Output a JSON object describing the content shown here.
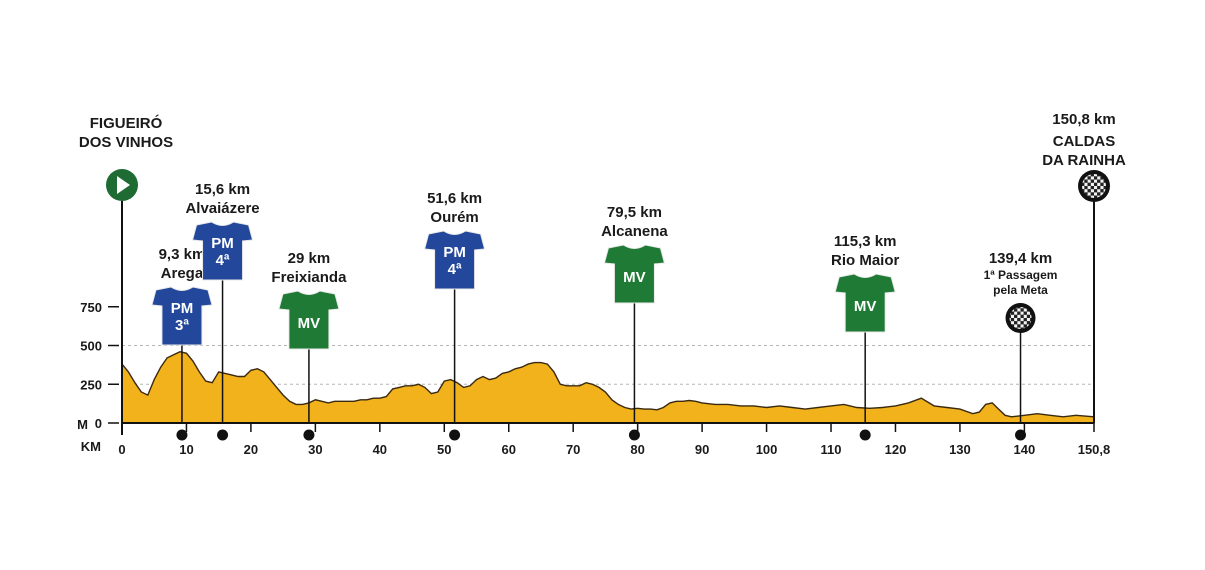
{
  "chart_data": {
    "type": "area",
    "title": "",
    "xlabel": "KM",
    "ylabel": "M",
    "xlim": [
      0,
      150.8
    ],
    "ylim": [
      0,
      1000
    ],
    "x_ticks": [
      "0",
      "10",
      "20",
      "30",
      "40",
      "50",
      "60",
      "70",
      "80",
      "90",
      "100",
      "110",
      "120",
      "130",
      "140",
      "150,8"
    ],
    "x_tick_values": [
      0,
      10,
      20,
      30,
      40,
      50,
      60,
      70,
      80,
      90,
      100,
      110,
      120,
      130,
      140,
      150.8
    ],
    "y_ticks": [
      "0",
      "250",
      "500",
      "750"
    ],
    "y_tick_values": [
      0,
      250,
      500,
      750
    ],
    "grid": {
      "horizontal_dashed": [
        250,
        500
      ]
    },
    "fill_color": "#f2b21c",
    "stroke_color": "#3a2a10",
    "elevation": {
      "x": [
        0,
        1,
        2,
        3,
        4,
        5,
        6,
        7,
        8,
        9,
        10,
        11,
        12,
        13,
        14,
        15,
        16,
        17,
        18,
        19,
        20,
        21,
        22,
        23,
        24,
        25,
        26,
        27,
        28,
        29,
        30,
        31,
        32,
        33,
        34,
        35,
        36,
        37,
        38,
        39,
        40,
        41,
        42,
        43,
        44,
        45,
        46,
        47,
        48,
        49,
        50,
        51,
        52,
        53,
        54,
        55,
        56,
        57,
        58,
        59,
        60,
        61,
        62,
        63,
        64,
        65,
        66,
        67,
        68,
        69,
        70,
        71,
        72,
        73,
        74,
        75,
        76,
        77,
        78,
        79,
        80,
        81,
        82,
        83,
        84,
        85,
        86,
        87,
        88,
        89,
        90,
        92,
        94,
        96,
        98,
        100,
        102,
        104,
        106,
        108,
        110,
        112,
        114,
        116,
        118,
        120,
        122,
        124,
        126,
        128,
        130,
        132,
        133,
        134,
        135,
        136,
        137,
        138,
        140,
        142,
        144,
        146,
        148,
        150.8
      ],
      "y": [
        380,
        330,
        260,
        200,
        180,
        280,
        360,
        420,
        440,
        460,
        450,
        400,
        330,
        270,
        260,
        330,
        320,
        310,
        300,
        300,
        340,
        350,
        330,
        280,
        230,
        180,
        140,
        120,
        120,
        130,
        150,
        140,
        130,
        140,
        140,
        140,
        140,
        150,
        150,
        160,
        160,
        170,
        220,
        230,
        240,
        240,
        250,
        230,
        190,
        200,
        270,
        280,
        260,
        230,
        240,
        280,
        300,
        280,
        290,
        320,
        330,
        350,
        360,
        380,
        390,
        390,
        380,
        330,
        250,
        240,
        240,
        240,
        260,
        250,
        230,
        200,
        150,
        120,
        100,
        90,
        95,
        90,
        90,
        85,
        100,
        130,
        140,
        140,
        145,
        140,
        130,
        120,
        120,
        110,
        110,
        100,
        110,
        100,
        90,
        100,
        110,
        120,
        100,
        95,
        100,
        110,
        130,
        160,
        110,
        100,
        90,
        60,
        70,
        120,
        130,
        90,
        50,
        40,
        50,
        60,
        50,
        40,
        50,
        40
      ]
    },
    "start": {
      "name": [
        "FIGUEIRÓ",
        "DOS VINHOS"
      ],
      "km": 0
    },
    "finish": {
      "name": [
        "CALDAS",
        "DA RAINHA"
      ],
      "km": 150.8,
      "label": "150,8 km"
    },
    "markers": [
      {
        "km": 9.3,
        "label": "9,3 km",
        "place": "Arega",
        "type": "PM",
        "category": "3ª",
        "color": "#22479b"
      },
      {
        "km": 15.6,
        "label": "15,6 km",
        "place": "Alvaiázere",
        "type": "PM",
        "category": "4ª",
        "color": "#22479b"
      },
      {
        "km": 29,
        "label": "29 km",
        "place": "Freixianda",
        "type": "MV",
        "category": "",
        "color": "#1f7a35"
      },
      {
        "km": 51.6,
        "label": "51,6 km",
        "place": "Ourém",
        "type": "PM",
        "category": "4ª",
        "color": "#22479b"
      },
      {
        "km": 79.5,
        "label": "79,5 km",
        "place": "Alcanena",
        "type": "MV",
        "category": "",
        "color": "#1f7a35"
      },
      {
        "km": 115.3,
        "label": "115,3 km",
        "place": "Rio Maior",
        "type": "MV",
        "category": "",
        "color": "#1f7a35"
      },
      {
        "km": 139.4,
        "label": "139,4 km",
        "place": [
          "1ª Passagem",
          "pela Meta"
        ],
        "type": "checkered",
        "category": "",
        "color": "#111111"
      }
    ]
  }
}
